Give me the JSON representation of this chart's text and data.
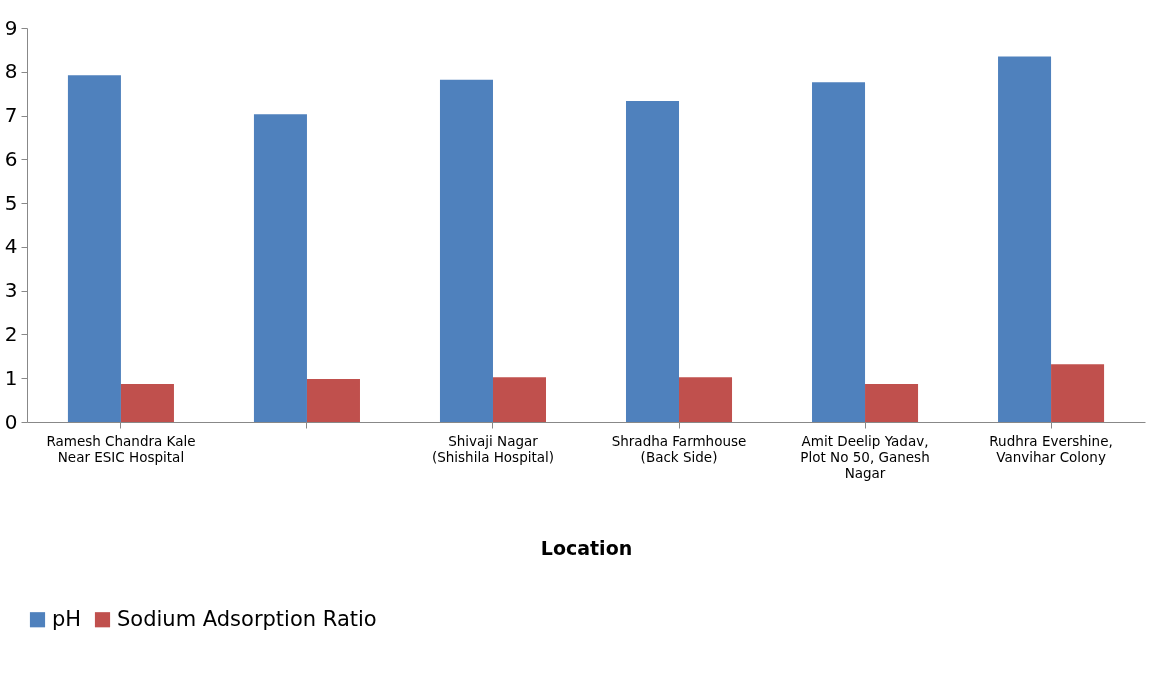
{
  "chart_data": {
    "type": "bar",
    "xlabel": "Location",
    "categories": [
      "Ramesh Chandra Kale Near ESIC Hospital",
      null,
      "Shivaji Nagar (Shishila Hospital)",
      "Shradha Farmhouse (Back Side)",
      "Amit Deelip Yadav, Plot No 50, Ganesh Nagar",
      "Rudhra Evershine, Vanvihar Colony"
    ],
    "series": [
      {
        "name": "pH",
        "color": "#4f81bd",
        "values": [
          7.92,
          7.03,
          7.82,
          7.33,
          7.76,
          8.35
        ]
      },
      {
        "name": "Sodium Adsorption Ratio",
        "color": "#c0504d",
        "values": [
          0.87,
          0.98,
          1.02,
          1.02,
          0.87,
          1.32
        ]
      }
    ],
    "ylim": [
      0,
      9
    ],
    "yticks": [
      0,
      1,
      2,
      3,
      4,
      5,
      6,
      7,
      8,
      9
    ],
    "grid": false,
    "legend": "bottom"
  }
}
